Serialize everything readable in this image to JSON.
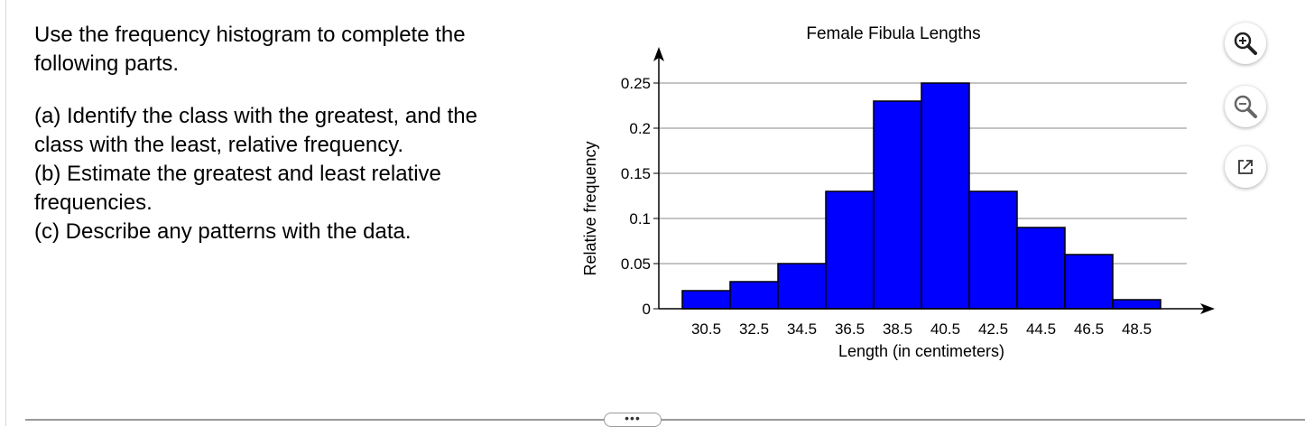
{
  "question": {
    "intro_line1": "Use the frequency histogram to complete the",
    "intro_line2": "following parts.",
    "part_a_line1": "(a) Identify the class with the greatest, and the",
    "part_a_line2": "class with the least, relative frequency.",
    "part_b_line1": "(b) Estimate the greatest and least relative",
    "part_b_line2": "frequencies.",
    "part_c": "(c) Describe any patterns with the data."
  },
  "chart_data": {
    "type": "bar",
    "title": "Female Fibula Lengths",
    "xlabel": "Length (in centimeters)",
    "ylabel": "Relative frequency",
    "categories": [
      "30.5",
      "32.5",
      "34.5",
      "36.5",
      "38.5",
      "40.5",
      "42.5",
      "44.5",
      "46.5",
      "48.5"
    ],
    "values": [
      0.02,
      0.03,
      0.05,
      0.13,
      0.23,
      0.25,
      0.13,
      0.09,
      0.06,
      0.01
    ],
    "yticks": [
      "0",
      "0.05",
      "0.1",
      "0.15",
      "0.2",
      "0.25"
    ],
    "ylim": [
      0,
      0.25
    ],
    "grid": true,
    "bar_color": "#0000ff"
  },
  "tools": {
    "zoom_in": "zoom-in-icon",
    "zoom_out": "zoom-out-icon",
    "popout": "external-link-icon"
  },
  "more_label": "•••"
}
